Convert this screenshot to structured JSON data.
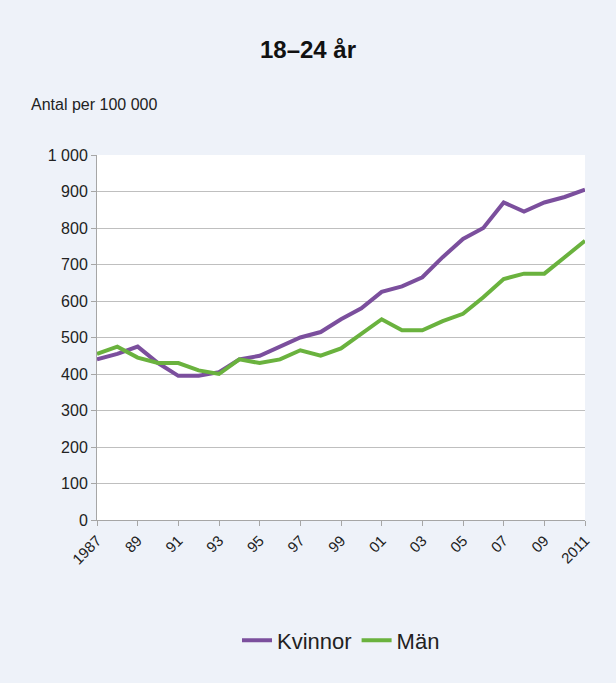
{
  "chart_data": {
    "type": "line",
    "title": "18–24 år",
    "y_label": "Antal per 100 000",
    "categories": [
      "1987",
      null,
      "89",
      null,
      "91",
      null,
      "93",
      null,
      "95",
      null,
      "97",
      null,
      "99",
      null,
      "01",
      null,
      "03",
      null,
      "05",
      null,
      "07",
      null,
      "09",
      null,
      "2011"
    ],
    "series": [
      {
        "name": "Kvinnor",
        "color": "#7b4f9d",
        "values": [
          440,
          455,
          475,
          430,
          395,
          395,
          405,
          440,
          450,
          475,
          500,
          515,
          550,
          580,
          625,
          640,
          665,
          720,
          770,
          800,
          870,
          845,
          870,
          885,
          905
        ]
      },
      {
        "name": "Män",
        "color": "#6ab23e",
        "values": [
          455,
          475,
          445,
          430,
          430,
          410,
          400,
          440,
          430,
          440,
          465,
          450,
          470,
          510,
          550,
          520,
          520,
          545,
          565,
          610,
          660,
          675,
          675,
          720,
          765
        ]
      }
    ],
    "ylim": [
      0,
      1000
    ],
    "yticks": [
      0,
      100,
      200,
      300,
      400,
      500,
      600,
      700,
      800,
      900,
      {
        "value": 1000,
        "label": "1 000"
      }
    ],
    "grid": true,
    "legend": "bottom"
  }
}
